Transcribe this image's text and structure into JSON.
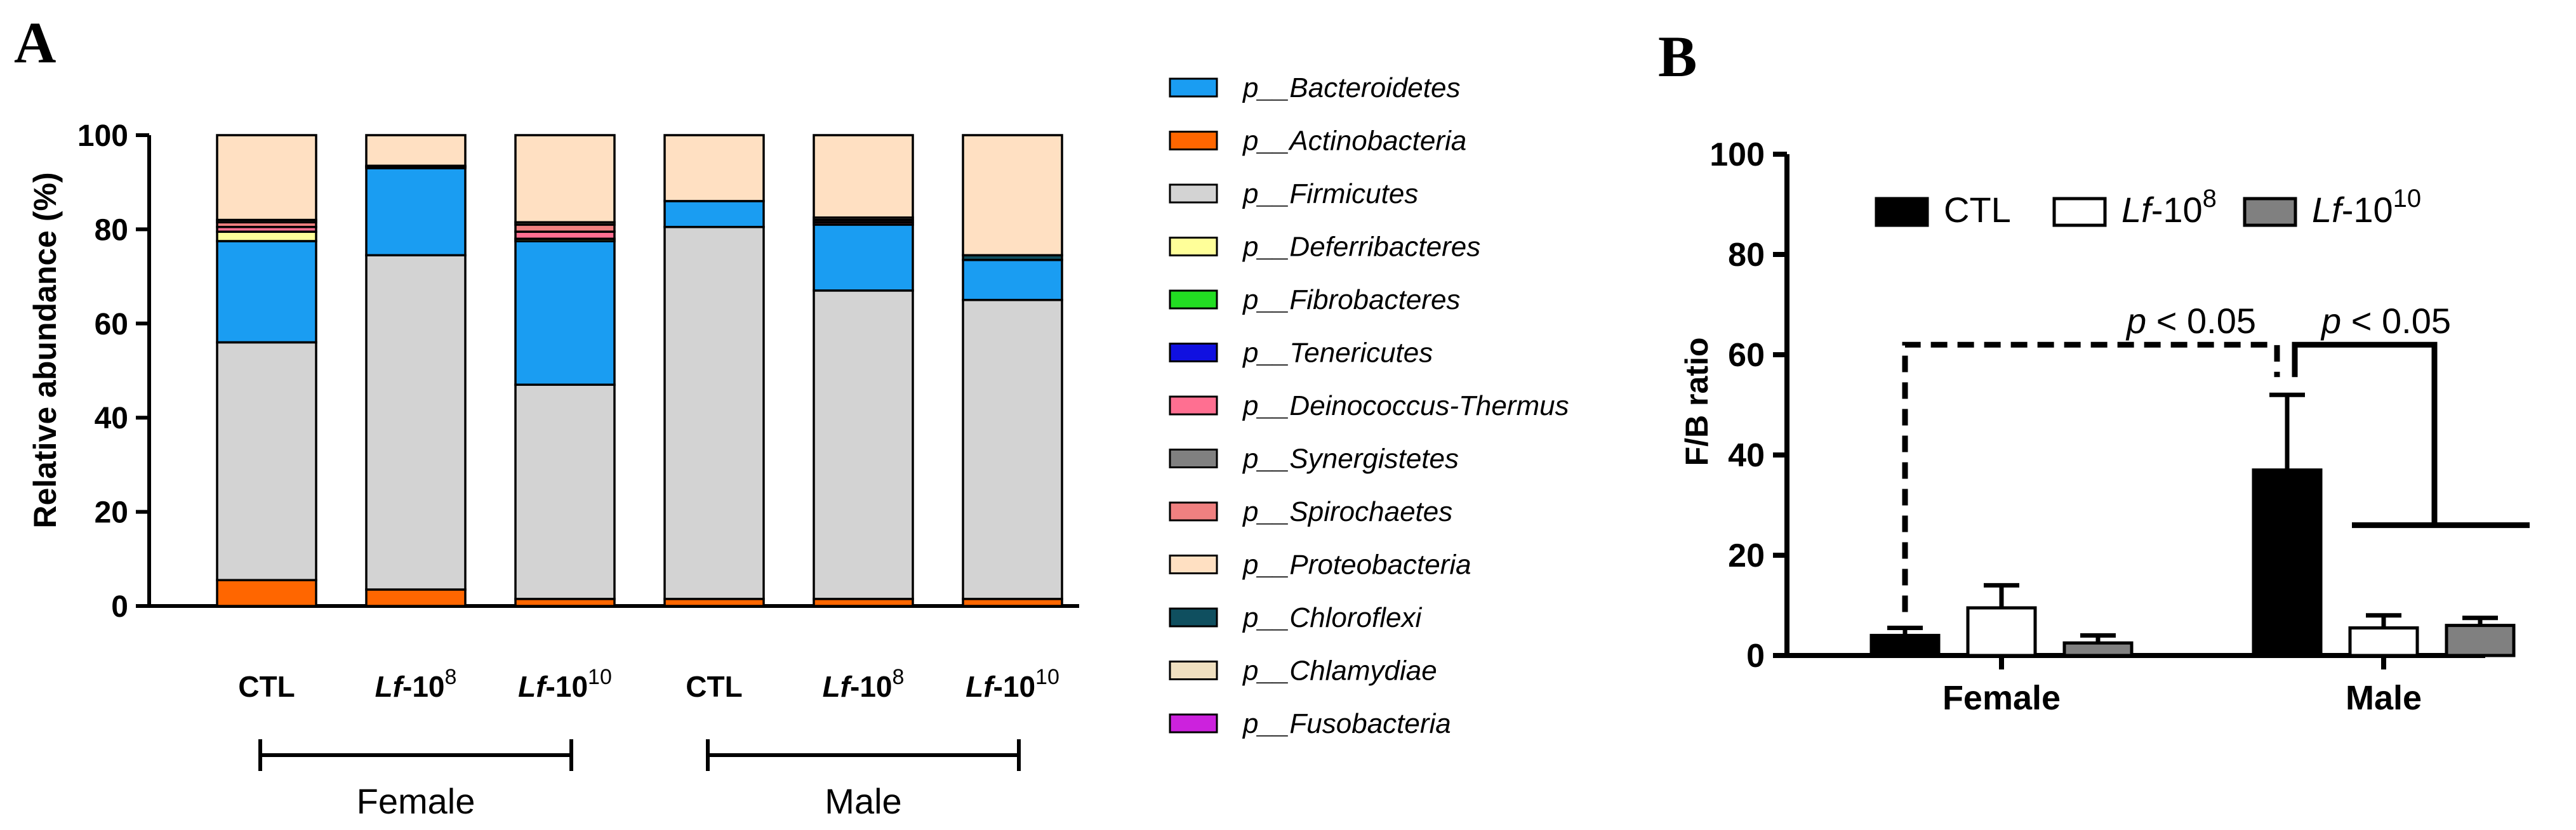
{
  "panels": {
    "a": "A",
    "b": "B"
  },
  "chart_data": [
    {
      "type": "bar",
      "stacked": true,
      "ylabel": "Relative abundance (%)",
      "ylim": [
        0,
        100
      ],
      "yticks": [
        0,
        20,
        40,
        60,
        80,
        100
      ],
      "categories": [
        {
          "base": "CTL",
          "exp": ""
        },
        {
          "base": "Lf-10",
          "exp": "8"
        },
        {
          "base": "Lf-10",
          "exp": "10"
        },
        {
          "base": "CTL",
          "exp": ""
        },
        {
          "base": "Lf-10",
          "exp": "8"
        },
        {
          "base": "Lf-10",
          "exp": "10"
        }
      ],
      "groups": [
        {
          "name": "Female",
          "from": 0,
          "to": 2
        },
        {
          "name": "Male",
          "from": 3,
          "to": 5
        }
      ],
      "series": [
        {
          "name": "p__Bacteroidetes",
          "color": "#1a9df2",
          "values": [
            21.5,
            18.5,
            30.5,
            5.5,
            14,
            8.5
          ]
        },
        {
          "name": "p__Actinobacteria",
          "color": "#ff6600",
          "values": [
            5.5,
            3.5,
            1.5,
            1.5,
            1.5,
            1.5
          ]
        },
        {
          "name": "p__Firmicutes",
          "color": "#d3d3d3",
          "values": [
            50.5,
            71,
            45.5,
            79,
            65.5,
            63.5
          ]
        },
        {
          "name": "p__Deferribacteres",
          "color": "#ffff99",
          "values": [
            2,
            0.3,
            0.5,
            0,
            0,
            0
          ]
        },
        {
          "name": "p__Fibrobacteres",
          "color": "#22dd22",
          "values": [
            0,
            0,
            0,
            0,
            0,
            0
          ]
        },
        {
          "name": "p__Tenericutes",
          "color": "#1010e0",
          "values": [
            0,
            0,
            0,
            0,
            0,
            0
          ]
        },
        {
          "name": "p__Deinococcus-Thermus",
          "color": "#ff6f91",
          "values": [
            1,
            0,
            1.5,
            0,
            0.5,
            0
          ]
        },
        {
          "name": "p__Synergistetes",
          "color": "#808080",
          "values": [
            0,
            0,
            0,
            0,
            0,
            0
          ]
        },
        {
          "name": "p__Spirochaetes",
          "color": "#f08080",
          "values": [
            1,
            0,
            1.5,
            0,
            0.5,
            0
          ]
        },
        {
          "name": "p__Proteobacteria",
          "color": "#ffe0c2",
          "values": [
            18,
            6.5,
            18.5,
            14,
            17.5,
            25.5
          ]
        },
        {
          "name": "p__Chloroflexi",
          "color": "#0f4f5f",
          "values": [
            0,
            0.2,
            0,
            0,
            0,
            1
          ]
        },
        {
          "name": "p__Chlamydiae",
          "color": "#f0e0c0",
          "values": [
            0.5,
            0,
            0.5,
            0,
            0.5,
            0
          ]
        },
        {
          "name": "p__Fusobacteria",
          "color": "#cc22dd",
          "values": [
            0,
            0,
            0,
            0,
            0,
            0
          ]
        }
      ],
      "stack_order": [
        1,
        2,
        0,
        3,
        4,
        5,
        6,
        7,
        8,
        11,
        10,
        9,
        12
      ]
    },
    {
      "type": "bar",
      "ylabel": "F/B ratio",
      "ylim": [
        0,
        100
      ],
      "yticks": [
        0,
        20,
        40,
        60,
        80,
        100
      ],
      "categories": [
        "Female",
        "Male"
      ],
      "series": [
        {
          "name": "CTL",
          "name_style": "plain",
          "fill": "#000000",
          "values": [
            4,
            37
          ],
          "errors": [
            1.5,
            15
          ]
        },
        {
          "name": "Lf-10",
          "exp": "8",
          "name_style": "italic-prefix",
          "fill": "#ffffff",
          "values": [
            9.5,
            5.5
          ],
          "errors": [
            4.5,
            2.5
          ]
        },
        {
          "name": "Lf-10",
          "exp": "10",
          "name_style": "italic-prefix",
          "fill": "#808080",
          "values": [
            2.5,
            6
          ],
          "errors": [
            1.5,
            1.5
          ]
        }
      ],
      "annotations": [
        {
          "text": "p < 0.05",
          "bracket": "dashed",
          "from": "Female-CTL",
          "to": "Male-CTL",
          "level": 62
        },
        {
          "text": "p < 0.05",
          "bracket": "solid",
          "from": "Male-CTL",
          "to": "Male-Lf-10^8..10",
          "level": 62
        }
      ]
    }
  ]
}
